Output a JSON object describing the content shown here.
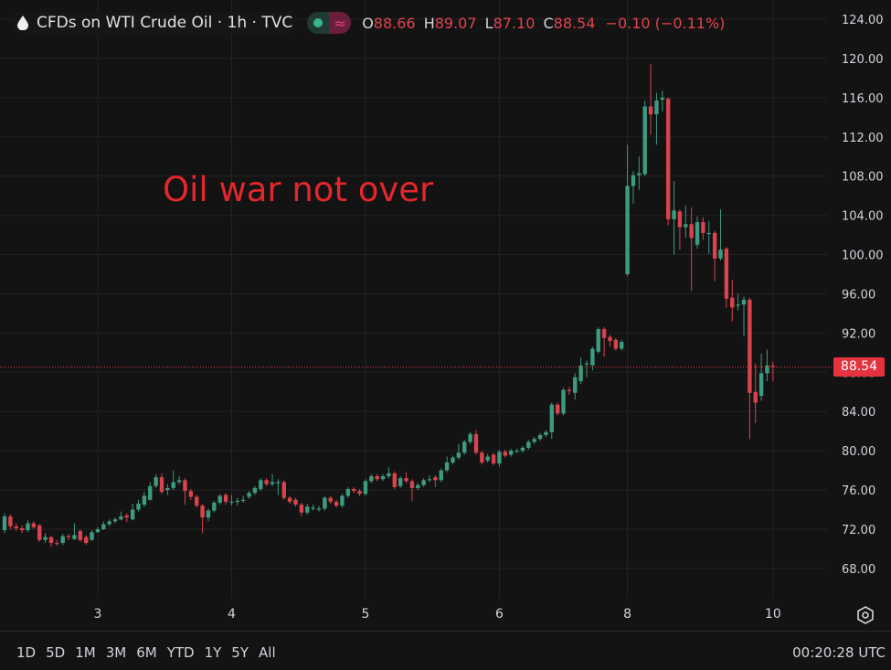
{
  "header": {
    "symbol_icon": "oil-drop-icon",
    "title": "CFDs on WTI Crude Oil · 1h · TVC",
    "status_icons": [
      "market-open-dot-icon",
      "delayed-data-icon"
    ],
    "delayed_glyph": "≈",
    "ohlc": {
      "o_label": "O",
      "o": "88.66",
      "h_label": "H",
      "h": "89.07",
      "l_label": "L",
      "l": "87.10",
      "c_label": "C",
      "c": "88.54",
      "change": "−0.10 (−0.11%)"
    }
  },
  "bottom_bar": {
    "ranges": [
      "1D",
      "5D",
      "1M",
      "3M",
      "6M",
      "YTD",
      "1Y",
      "5Y",
      "All"
    ],
    "clock": "00:20:28 UTC",
    "settings_icon": "gear-icon"
  },
  "chart_data": {
    "type": "candlestick",
    "title": "",
    "annotation": "Oil war not over",
    "last_price_label": "88.54",
    "last_price": 88.54,
    "ylim": [
      64.6,
      125.9
    ],
    "y_ticks": [
      "68.00",
      "72.00",
      "76.00",
      "80.00",
      "84.00",
      "88.00",
      "92.00",
      "96.00",
      "100.00",
      "104.00",
      "108.00",
      "112.00",
      "116.00",
      "120.00",
      "124.00"
    ],
    "x_ticks": [
      {
        "label": "3",
        "index": 16
      },
      {
        "label": "4",
        "index": 39
      },
      {
        "label": "5",
        "index": 62
      },
      {
        "label": "6",
        "index": 85
      },
      {
        "label": "8",
        "index": 107
      },
      {
        "label": "10",
        "index": 132
      }
    ],
    "grid": true,
    "colors": {
      "up": "#3d9b80",
      "down": "#d9434d",
      "background": "#131313",
      "grid": "#232323",
      "annotation": "#e3262c",
      "last_price": "#e5323f"
    },
    "ohlc_fields": [
      "open",
      "high",
      "low",
      "close"
    ],
    "candles": [
      [
        71.9,
        73.6,
        71.6,
        73.3
      ],
      [
        73.3,
        73.5,
        72.0,
        72.3
      ],
      [
        72.3,
        72.6,
        71.8,
        72.1
      ],
      [
        72.1,
        72.4,
        71.6,
        71.9
      ],
      [
        71.9,
        72.9,
        71.7,
        72.6
      ],
      [
        72.6,
        72.8,
        72.0,
        72.2
      ],
      [
        72.4,
        72.5,
        70.7,
        70.9
      ],
      [
        70.9,
        71.6,
        70.6,
        71.2
      ],
      [
        71.2,
        71.3,
        70.2,
        70.6
      ],
      [
        70.6,
        70.9,
        70.3,
        70.5
      ],
      [
        70.6,
        71.5,
        70.4,
        71.3
      ],
      [
        71.3,
        71.5,
        70.9,
        71.2
      ],
      [
        71.0,
        72.6,
        70.9,
        71.4
      ],
      [
        71.8,
        72.0,
        70.7,
        70.9
      ],
      [
        71.2,
        71.4,
        70.4,
        70.6
      ],
      [
        70.9,
        71.9,
        70.8,
        71.7
      ],
      [
        71.7,
        72.2,
        71.6,
        72.0
      ],
      [
        72.0,
        72.8,
        71.9,
        72.5
      ],
      [
        72.5,
        73.0,
        72.3,
        72.8
      ],
      [
        72.8,
        73.2,
        72.6,
        73.0
      ],
      [
        73.0,
        73.8,
        72.9,
        73.3
      ],
      [
        73.4,
        73.6,
        72.7,
        73.2
      ],
      [
        73.0,
        74.6,
        72.9,
        74.0
      ],
      [
        74.0,
        75.0,
        73.8,
        74.6
      ],
      [
        74.5,
        75.8,
        74.3,
        75.4
      ],
      [
        75.0,
        76.8,
        74.9,
        76.4
      ],
      [
        76.4,
        77.6,
        76.2,
        77.3
      ],
      [
        77.3,
        77.7,
        75.6,
        75.8
      ],
      [
        76.0,
        76.6,
        75.5,
        76.2
      ],
      [
        76.2,
        78.0,
        76.0,
        76.8
      ],
      [
        76.8,
        77.4,
        76.6,
        77.0
      ],
      [
        77.0,
        77.2,
        74.5,
        75.9
      ],
      [
        75.9,
        76.1,
        75.0,
        75.3
      ],
      [
        75.3,
        75.5,
        74.2,
        74.4
      ],
      [
        74.4,
        74.6,
        71.6,
        73.2
      ],
      [
        73.2,
        74.1,
        72.8,
        73.9
      ],
      [
        73.9,
        74.9,
        73.7,
        74.7
      ],
      [
        74.7,
        75.6,
        74.5,
        75.4
      ],
      [
        75.5,
        75.7,
        74.5,
        74.8
      ],
      [
        74.8,
        75.5,
        74.4,
        74.8
      ],
      [
        74.9,
        75.2,
        74.4,
        74.9
      ],
      [
        74.9,
        75.4,
        74.7,
        75.0
      ],
      [
        75.3,
        75.9,
        75.1,
        75.7
      ],
      [
        75.7,
        76.4,
        75.5,
        76.2
      ],
      [
        76.1,
        77.2,
        75.9,
        77.0
      ],
      [
        77.0,
        77.2,
        76.4,
        76.6
      ],
      [
        76.6,
        77.6,
        76.4,
        76.8
      ],
      [
        76.8,
        77.1,
        75.5,
        76.8
      ],
      [
        76.8,
        77.0,
        75.0,
        75.2
      ],
      [
        75.2,
        75.4,
        74.6,
        74.8
      ],
      [
        75.0,
        75.2,
        74.3,
        74.5
      ],
      [
        74.5,
        74.7,
        73.3,
        73.7
      ],
      [
        73.7,
        74.6,
        73.5,
        74.3
      ],
      [
        74.2,
        74.5,
        73.9,
        74.2
      ],
      [
        74.1,
        74.4,
        73.8,
        74.1
      ],
      [
        74.1,
        75.4,
        73.9,
        75.2
      ],
      [
        75.2,
        75.4,
        74.6,
        74.8
      ],
      [
        74.8,
        75.0,
        74.2,
        74.4
      ],
      [
        74.4,
        75.6,
        74.2,
        75.4
      ],
      [
        75.4,
        76.3,
        75.2,
        76.1
      ],
      [
        76.1,
        76.3,
        75.7,
        75.9
      ],
      [
        75.9,
        76.1,
        75.4,
        75.6
      ],
      [
        75.6,
        77.1,
        75.4,
        76.9
      ],
      [
        76.9,
        77.6,
        76.7,
        77.4
      ],
      [
        77.4,
        77.6,
        76.9,
        77.1
      ],
      [
        77.1,
        77.6,
        76.9,
        77.4
      ],
      [
        77.4,
        78.3,
        77.2,
        77.7
      ],
      [
        77.7,
        77.9,
        76.1,
        76.3
      ],
      [
        76.4,
        77.4,
        76.2,
        77.2
      ],
      [
        77.2,
        77.8,
        76.7,
        76.9
      ],
      [
        76.9,
        77.1,
        74.9,
        76.2
      ],
      [
        76.2,
        76.7,
        76.0,
        76.5
      ],
      [
        76.5,
        77.2,
        76.3,
        77.0
      ],
      [
        77.0,
        77.5,
        76.8,
        77.1
      ],
      [
        77.3,
        77.5,
        76.3,
        77.0
      ],
      [
        77.0,
        78.2,
        76.8,
        78.0
      ],
      [
        78.0,
        79.4,
        77.8,
        78.8
      ],
      [
        78.8,
        79.5,
        78.6,
        79.3
      ],
      [
        79.3,
        80.7,
        79.1,
        79.8
      ],
      [
        79.8,
        81.1,
        79.6,
        80.9
      ],
      [
        80.9,
        81.9,
        80.7,
        81.7
      ],
      [
        81.7,
        82.1,
        79.6,
        79.8
      ],
      [
        79.8,
        80.0,
        78.6,
        78.8
      ],
      [
        79.0,
        79.7,
        78.8,
        79.4
      ],
      [
        79.6,
        79.8,
        78.5,
        78.7
      ],
      [
        78.7,
        80.1,
        78.4,
        79.9
      ],
      [
        79.9,
        80.1,
        79.3,
        79.5
      ],
      [
        79.6,
        80.2,
        79.4,
        80.0
      ],
      [
        80.0,
        80.2,
        79.8,
        80.0
      ],
      [
        80.0,
        80.5,
        79.8,
        80.3
      ],
      [
        80.3,
        81.1,
        80.1,
        80.9
      ],
      [
        80.9,
        81.4,
        80.7,
        81.2
      ],
      [
        81.2,
        81.8,
        81.0,
        81.6
      ],
      [
        81.6,
        82.1,
        81.4,
        81.9
      ],
      [
        81.9,
        84.9,
        81.2,
        84.7
      ],
      [
        84.7,
        84.9,
        83.6,
        83.8
      ],
      [
        83.8,
        86.4,
        83.6,
        86.2
      ],
      [
        86.2,
        86.5,
        85.7,
        86.1
      ],
      [
        85.9,
        87.9,
        85.2,
        87.5
      ],
      [
        87.1,
        89.5,
        86.8,
        88.7
      ],
      [
        88.8,
        89.2,
        87.5,
        88.9
      ],
      [
        88.7,
        90.6,
        88.2,
        90.4
      ],
      [
        90.1,
        92.6,
        89.9,
        92.4
      ],
      [
        92.4,
        92.6,
        89.6,
        91.5
      ],
      [
        91.6,
        91.8,
        90.6,
        91.2
      ],
      [
        91.3,
        91.5,
        90.2,
        90.4
      ],
      [
        90.4,
        91.3,
        90.2,
        91.1
      ],
      [
        98.0,
        111.2,
        97.8,
        107.0
      ],
      [
        107.0,
        108.5,
        105.2,
        108.1
      ],
      [
        108.1,
        110.0,
        106.6,
        108.3
      ],
      [
        108.2,
        115.7,
        108.0,
        115.1
      ],
      [
        115.1,
        119.4,
        112.2,
        114.3
      ],
      [
        114.3,
        116.5,
        111.2,
        115.7
      ],
      [
        115.8,
        116.7,
        114.6,
        116.0
      ],
      [
        115.9,
        116.0,
        103.0,
        103.6
      ],
      [
        103.6,
        107.5,
        100.0,
        104.5
      ],
      [
        104.4,
        104.6,
        100.5,
        102.8
      ],
      [
        102.8,
        105.0,
        101.7,
        103.1
      ],
      [
        103.1,
        104.8,
        96.3,
        101.7
      ],
      [
        101.0,
        103.9,
        100.6,
        103.3
      ],
      [
        103.3,
        103.8,
        101.5,
        102.2
      ],
      [
        102.2,
        103.4,
        100.1,
        102.2
      ],
      [
        102.2,
        102.4,
        97.3,
        99.6
      ],
      [
        99.6,
        104.6,
        99.4,
        100.5
      ],
      [
        100.6,
        100.8,
        94.6,
        95.5
      ],
      [
        95.6,
        97.4,
        93.2,
        94.6
      ],
      [
        94.9,
        96.0,
        94.3,
        94.9
      ],
      [
        94.9,
        95.7,
        91.7,
        95.4
      ],
      [
        95.4,
        95.6,
        81.2,
        85.9
      ],
      [
        86.0,
        88.9,
        82.8,
        84.9
      ],
      [
        85.6,
        89.9,
        85.1,
        87.9
      ],
      [
        87.9,
        90.3,
        87.1,
        88.7
      ],
      [
        88.66,
        89.07,
        87.1,
        88.54
      ]
    ]
  }
}
